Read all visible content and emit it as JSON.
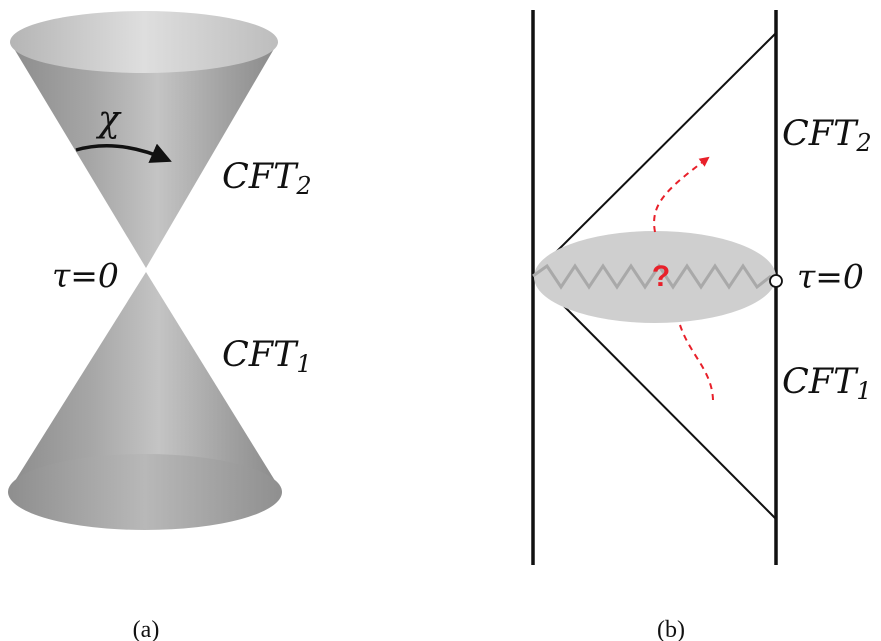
{
  "panel_a": {
    "chi_label": "χ",
    "cft_upper": "CFT",
    "cft_upper_sub": "2",
    "cft_lower": "CFT",
    "cft_lower_sub": "1",
    "tau_label": "τ=0",
    "caption": "(a)"
  },
  "panel_b": {
    "cft_upper": "CFT",
    "cft_upper_sub": "2",
    "cft_lower": "CFT",
    "cft_lower_sub": "1",
    "tau_label": "τ=0",
    "question_mark": "?",
    "caption": "(b)"
  },
  "colors": {
    "line": "#111111",
    "red_accent": "#e8202a",
    "blob_fill": "#cfcfcf",
    "zigzag": "#a9a9a9",
    "cone_light": "#e2e2e2",
    "cone_dark": "#7c7c7c"
  }
}
